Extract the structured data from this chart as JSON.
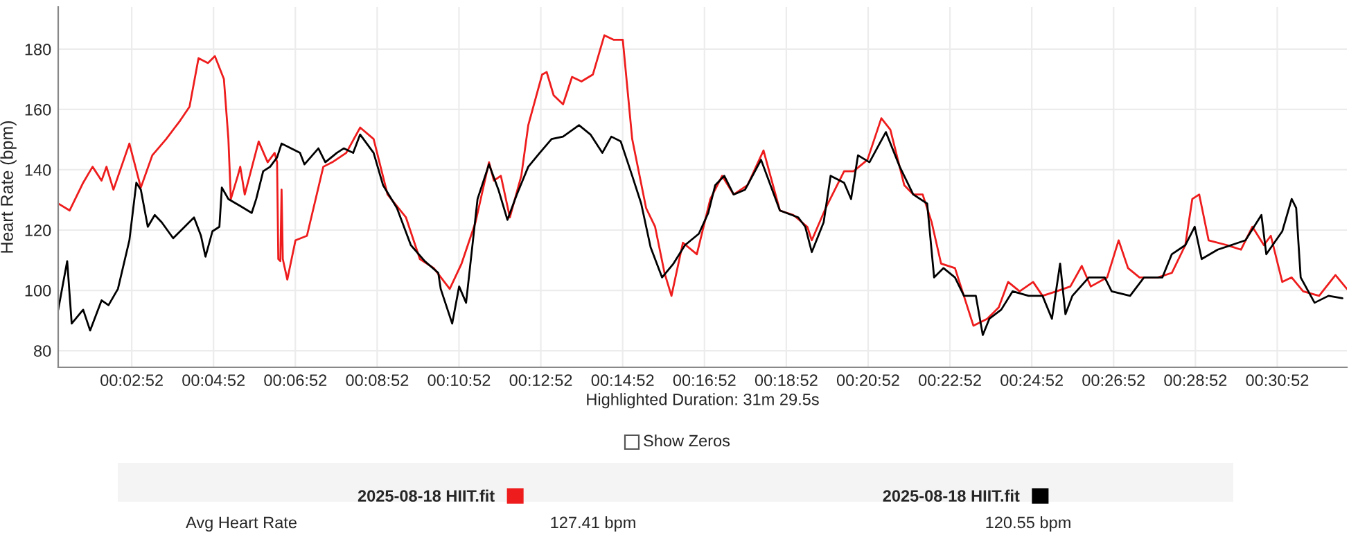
{
  "chart_data": {
    "type": "line",
    "xlabel": "Highlighted Duration: 31m 29.5s",
    "ylabel": "Heart Rate (bpm)",
    "xlim": [
      1.07,
      32.57
    ],
    "ylim": [
      74.5,
      194
    ],
    "xticks": [
      {
        "value": 2.867,
        "label": "00:02:52"
      },
      {
        "value": 4.867,
        "label": "00:04:52"
      },
      {
        "value": 6.867,
        "label": "00:06:52"
      },
      {
        "value": 8.867,
        "label": "00:08:52"
      },
      {
        "value": 10.867,
        "label": "00:10:52"
      },
      {
        "value": 12.867,
        "label": "00:12:52"
      },
      {
        "value": 14.867,
        "label": "00:14:52"
      },
      {
        "value": 16.867,
        "label": "00:16:52"
      },
      {
        "value": 18.867,
        "label": "00:18:52"
      },
      {
        "value": 20.867,
        "label": "00:20:52"
      },
      {
        "value": 22.867,
        "label": "00:22:52"
      },
      {
        "value": 24.867,
        "label": "00:24:52"
      },
      {
        "value": 26.867,
        "label": "00:26:52"
      },
      {
        "value": 28.867,
        "label": "00:28:52"
      },
      {
        "value": 30.867,
        "label": "00:30:52"
      }
    ],
    "yticks": [
      80,
      100,
      120,
      140,
      160,
      180
    ],
    "grid": true,
    "legend": "bottom",
    "marker": "none",
    "line_style": "solid",
    "annotations": [
      "Show Zeros",
      "Avg Heart Rate",
      "127.41 bpm",
      "120.55 bpm"
    ],
    "series": [
      {
        "name": "2025-08-18 HIIT.fit",
        "color": "#ee1c1c",
        "x": [
          1.07,
          1.35,
          1.68,
          1.91,
          2.13,
          2.25,
          2.42,
          2.81,
          3.09,
          3.37,
          3.71,
          4.05,
          4.28,
          4.5,
          4.73,
          4.9,
          5.12,
          5.23,
          5.29,
          5.46,
          5.52,
          5.63,
          5.97,
          6.19,
          6.36,
          6.42,
          6.45,
          6.5,
          6.53,
          6.56,
          6.67,
          6.87,
          7.15,
          7.55,
          7.77,
          8.11,
          8.45,
          8.78,
          9.12,
          9.57,
          9.91,
          10.25,
          10.64,
          10.93,
          11.27,
          11.6,
          11.72,
          11.89,
          12.11,
          12.39,
          12.56,
          12.9,
          13.01,
          13.18,
          13.41,
          13.63,
          13.86,
          14.14,
          14.42,
          14.65,
          14.87,
          15.1,
          15.44,
          15.66,
          15.89,
          16.06,
          16.34,
          16.68,
          17.01,
          17.3,
          17.58,
          17.92,
          18.31,
          18.71,
          19.04,
          19.38,
          19.49,
          19.83,
          20.28,
          20.51,
          20.85,
          21.19,
          21.41,
          21.75,
          21.97,
          22.2,
          22.42,
          22.65,
          22.99,
          23.44,
          23.78,
          24.06,
          24.29,
          24.57,
          24.9,
          25.13,
          25.47,
          25.81,
          26.09,
          26.31,
          26.71,
          26.99,
          27.22,
          27.5,
          27.95,
          28.29,
          28.62,
          28.79,
          28.96,
          29.19,
          29.64,
          29.98,
          30.26,
          30.54,
          30.71,
          30.99,
          31.22,
          31.5,
          31.89,
          32.29,
          32.57
        ],
        "values": [
          128.8,
          126.5,
          135.7,
          141.0,
          136.4,
          141.0,
          133.4,
          148.7,
          134.1,
          144.8,
          150.2,
          156.3,
          160.9,
          177.0,
          175.4,
          177.7,
          170.1,
          150.2,
          130.3,
          138.0,
          141.0,
          131.8,
          149.4,
          142.5,
          145.6,
          142.5,
          110.4,
          109.7,
          133.4,
          110.4,
          103.6,
          116.6,
          118.1,
          141.0,
          142.5,
          145.6,
          154.0,
          150.2,
          131.8,
          124.2,
          110.4,
          107.4,
          100.5,
          108.9,
          122.6,
          142.5,
          136.4,
          138.0,
          124.2,
          138.0,
          154.8,
          171.6,
          172.4,
          164.7,
          161.7,
          170.8,
          169.3,
          171.6,
          184.6,
          183.1,
          183.1,
          150.2,
          127.3,
          121.1,
          105.8,
          98.2,
          115.8,
          112.0,
          130.3,
          138.0,
          131.8,
          134.9,
          146.4,
          126.5,
          125.0,
          121.1,
          116.6,
          127.3,
          139.5,
          139.5,
          143.3,
          157.1,
          153.3,
          134.9,
          131.8,
          131.8,
          122.6,
          108.9,
          107.4,
          88.3,
          90.6,
          94.4,
          102.8,
          99.7,
          102.8,
          98.2,
          99.7,
          101.3,
          108.1,
          101.3,
          104.3,
          116.6,
          107.4,
          104.3,
          104.3,
          105.8,
          115.0,
          130.3,
          131.8,
          116.6,
          115.0,
          113.5,
          121.1,
          115.0,
          118.1,
          102.8,
          104.3,
          99.7,
          98.2,
          105.1,
          100.5
        ]
      },
      {
        "name": "2025-08-18 HIIT.fit",
        "color": "#000000",
        "x": [
          1.07,
          1.29,
          1.4,
          1.68,
          1.85,
          2.13,
          2.3,
          2.53,
          2.81,
          2.98,
          3.09,
          3.26,
          3.43,
          3.6,
          3.88,
          4.11,
          4.39,
          4.56,
          4.67,
          4.84,
          5.01,
          5.07,
          5.23,
          5.52,
          5.8,
          5.91,
          6.08,
          6.25,
          6.42,
          6.53,
          6.76,
          6.98,
          7.09,
          7.43,
          7.6,
          7.88,
          8.05,
          8.28,
          8.45,
          8.78,
          9.01,
          9.35,
          9.69,
          10.03,
          10.36,
          10.42,
          10.7,
          10.87,
          11.04,
          11.32,
          11.6,
          11.83,
          12.05,
          12.28,
          12.56,
          12.84,
          13.13,
          13.41,
          13.8,
          14.08,
          14.37,
          14.59,
          14.82,
          15.1,
          15.32,
          15.55,
          15.83,
          16.11,
          16.39,
          16.73,
          16.96,
          17.13,
          17.35,
          17.58,
          17.86,
          18.25,
          18.71,
          19.16,
          19.33,
          19.49,
          19.78,
          19.95,
          20.28,
          20.45,
          20.62,
          20.9,
          21.3,
          21.64,
          21.97,
          22.31,
          22.48,
          22.71,
          22.99,
          23.21,
          23.5,
          23.67,
          23.83,
          24.12,
          24.4,
          24.79,
          25.13,
          25.36,
          25.56,
          25.69,
          25.86,
          26.26,
          26.65,
          26.82,
          27.27,
          27.61,
          28.06,
          28.29,
          28.62,
          28.85,
          29.02,
          29.41,
          30.09,
          30.48,
          30.6,
          30.99,
          31.22,
          31.33,
          31.44,
          31.78,
          32.12,
          32.46
        ],
        "values": [
          93.6,
          109.7,
          89.0,
          93.6,
          86.7,
          96.7,
          95.1,
          100.5,
          116.6,
          135.7,
          133.4,
          121.1,
          125.0,
          122.6,
          117.3,
          120.4,
          124.2,
          118.1,
          111.2,
          119.6,
          121.1,
          134.1,
          130.3,
          128.0,
          125.7,
          130.3,
          139.5,
          141.0,
          144.1,
          148.7,
          147.1,
          145.6,
          141.8,
          147.1,
          142.5,
          145.6,
          147.1,
          145.6,
          151.7,
          145.6,
          134.9,
          127.3,
          115.0,
          109.7,
          105.8,
          100.5,
          89.0,
          101.3,
          95.9,
          130.3,
          141.8,
          133.4,
          123.4,
          131.8,
          141.0,
          145.6,
          150.2,
          151.0,
          154.8,
          151.7,
          145.6,
          151.0,
          149.4,
          138.0,
          128.8,
          114.3,
          104.3,
          108.9,
          115.0,
          118.8,
          125.7,
          134.9,
          138.0,
          131.8,
          133.4,
          143.3,
          126.5,
          124.2,
          121.1,
          112.7,
          122.6,
          138.0,
          135.7,
          130.3,
          144.8,
          142.5,
          152.5,
          141.0,
          131.8,
          128.8,
          104.3,
          107.4,
          104.3,
          98.2,
          98.2,
          85.2,
          90.6,
          93.6,
          99.7,
          98.2,
          98.2,
          90.6,
          108.9,
          92.1,
          98.2,
          104.3,
          104.3,
          99.7,
          98.2,
          104.3,
          104.3,
          112.0,
          115.0,
          121.1,
          110.4,
          113.5,
          116.6,
          125.0,
          112.0,
          119.6,
          130.3,
          127.3,
          104.3,
          95.9,
          98.2,
          97.4
        ]
      }
    ]
  }
}
